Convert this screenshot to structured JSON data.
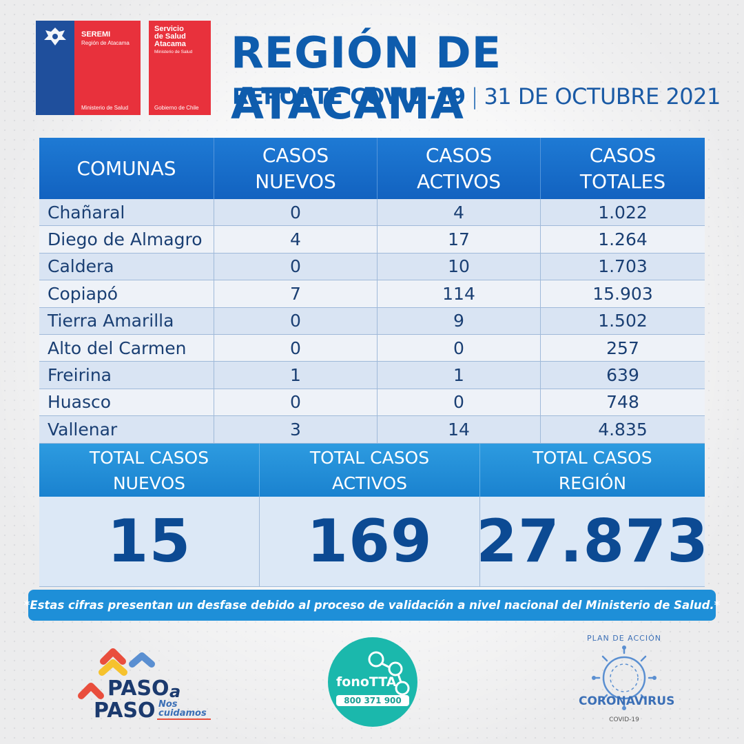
{
  "header": {
    "title": "REGIÓN DE ATACAMA",
    "report_label": "REPORTE COVID-19",
    "separator": "|",
    "date": "31 DE OCTUBRE 2021"
  },
  "logos": {
    "seremi": {
      "line1": "SEREMI",
      "line2": "Región de Atacama",
      "footer": "Ministerio de Salud"
    },
    "servicio": {
      "line1": "Servicio",
      "line2": "de Salud",
      "line3": "Atacama",
      "line4": "Ministerio de Salud",
      "footer": "Gobierno de Chile"
    },
    "paso": {
      "word1": "PASO",
      "word_a": "a",
      "word2": "PASO",
      "tag1": "Nos",
      "tag2": "cuidamos"
    },
    "fono": {
      "name": "fonoTTA",
      "number": "800 371 900"
    },
    "plan": {
      "top": "PLAN DE ACCIÓN",
      "main": "CORONAVIRUS",
      "bottom": "COVID-19"
    }
  },
  "colors": {
    "title_blue": "#0e5cad",
    "table_header": "#1262c0",
    "totals_header": "#1a82cf",
    "note_bg": "#1e8fd8",
    "logo_red": "#e8313c",
    "logo_blue": "#1f4f9c"
  },
  "table": {
    "headers": {
      "comunas": "COMUNAS",
      "nuevos_1": "CASOS",
      "nuevos_2": "NUEVOS",
      "activos_1": "CASOS",
      "activos_2": "ACTIVOS",
      "totales_1": "CASOS",
      "totales_2": "TOTALES"
    },
    "rows": [
      {
        "comuna": "Chañaral",
        "nuevos": "0",
        "activos": "4",
        "totales": "1.022"
      },
      {
        "comuna": "Diego de Almagro",
        "nuevos": "4",
        "activos": "17",
        "totales": "1.264"
      },
      {
        "comuna": "Caldera",
        "nuevos": "0",
        "activos": "10",
        "totales": "1.703"
      },
      {
        "comuna": "Copiapó",
        "nuevos": "7",
        "activos": "114",
        "totales": "15.903"
      },
      {
        "comuna": "Tierra Amarilla",
        "nuevos": "0",
        "activos": "9",
        "totales": "1.502"
      },
      {
        "comuna": "Alto del Carmen",
        "nuevos": "0",
        "activos": "0",
        "totales": "257"
      },
      {
        "comuna": "Freirina",
        "nuevos": "1",
        "activos": "1",
        "totales": "639"
      },
      {
        "comuna": "Huasco",
        "nuevos": "0",
        "activos": "0",
        "totales": "748"
      },
      {
        "comuna": "Vallenar",
        "nuevos": "3",
        "activos": "14",
        "totales": "4.835"
      }
    ]
  },
  "totals": {
    "nuevos_label_1": "TOTAL CASOS",
    "nuevos_label_2": "NUEVOS",
    "activos_label_1": "TOTAL CASOS",
    "activos_label_2": "ACTIVOS",
    "region_label_1": "TOTAL CASOS",
    "region_label_2": "REGIÓN",
    "nuevos_value": "15",
    "activos_value": "169",
    "region_value": "27.873"
  },
  "note": "*Estas cifras presentan un desfase debido al proceso de validación a nivel nacional del Ministerio de Salud.*"
}
